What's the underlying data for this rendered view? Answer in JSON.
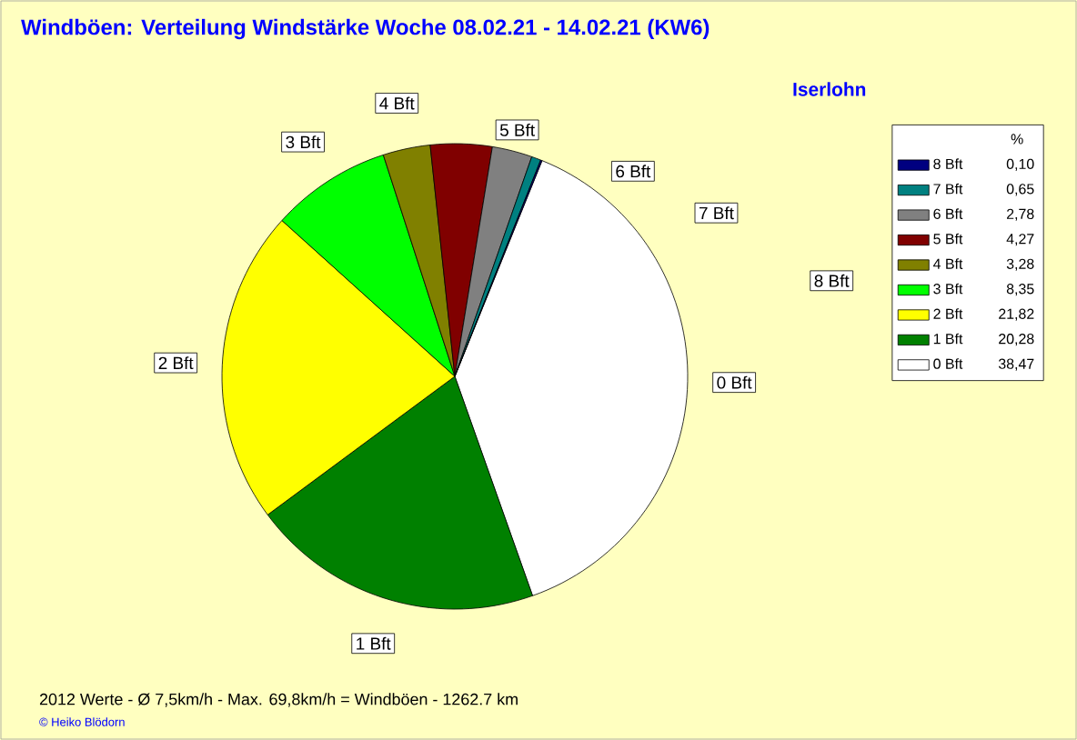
{
  "chart_data": {
    "type": "pie",
    "title": "Windböen: Verteilung Windstärke  Woche 08.02.21 - 14.02.21 (KW6)",
    "subtitle": "Iserlohn",
    "legend_title": "%",
    "categories": [
      "8 Bft",
      "7 Bft",
      "6 Bft",
      "5 Bft",
      "4 Bft",
      "3 Bft",
      "2 Bft",
      "1 Bft",
      "0 Bft"
    ],
    "values": [
      0.1,
      0.65,
      2.78,
      4.27,
      3.28,
      8.35,
      21.82,
      20.28,
      38.47
    ],
    "value_labels": [
      "0,10",
      "0,65",
      "2,78",
      "4,27",
      "3,28",
      "8,35",
      "21,82",
      "20,28",
      "38,47"
    ],
    "colors": [
      "#000080",
      "#008080",
      "#808080",
      "#800000",
      "#808000",
      "#00ff00",
      "#ffff00",
      "#008000",
      "#ffffff"
    ],
    "legend": "right",
    "annotations": [
      "2012 Werte   -   Ø 7,5km/h  -  Max. 69,8km/h = Windböen   -   1262.7 km",
      "© Heiko Blödorn"
    ]
  }
}
